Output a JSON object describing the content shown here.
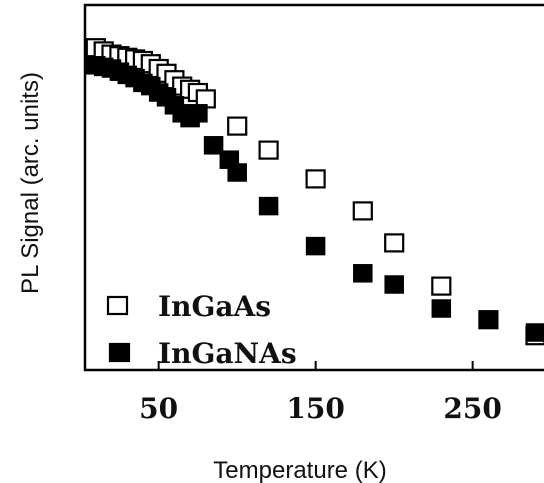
{
  "chart_data": {
    "type": "scatter",
    "xlabel": "Temperature (K)",
    "ylabel": "PL Signal (arc. units)",
    "xlim": [
      5,
      295
    ],
    "ylim": [
      0,
      1.0
    ],
    "xticks": [
      50,
      150,
      250
    ],
    "grid": false,
    "legend_position": "bottom-left",
    "series": [
      {
        "name": "InGaAs",
        "marker": "open-square",
        "color": "#000000",
        "x": [
          10,
          15,
          20,
          25,
          30,
          35,
          40,
          45,
          50,
          55,
          60,
          65,
          70,
          75,
          80,
          100,
          120,
          150,
          180,
          200,
          230,
          260,
          290
        ],
        "y": [
          0.99,
          0.98,
          0.97,
          0.965,
          0.96,
          0.955,
          0.95,
          0.94,
          0.925,
          0.91,
          0.89,
          0.87,
          0.86,
          0.85,
          0.83,
          0.745,
          0.67,
          0.58,
          0.48,
          0.38,
          0.245,
          0.14,
          0.09
        ]
      },
      {
        "name": "InGaNAs",
        "marker": "filled-square",
        "color": "#000000",
        "x": [
          10,
          15,
          20,
          25,
          30,
          35,
          40,
          45,
          50,
          55,
          60,
          65,
          70,
          75,
          85,
          95,
          100,
          120,
          150,
          180,
          200,
          230,
          260,
          290
        ],
        "y": [
          0.935,
          0.93,
          0.925,
          0.915,
          0.905,
          0.895,
          0.88,
          0.87,
          0.85,
          0.835,
          0.81,
          0.785,
          0.77,
          0.785,
          0.685,
          0.64,
          0.6,
          0.495,
          0.37,
          0.285,
          0.25,
          0.175,
          0.14,
          0.1
        ]
      }
    ]
  }
}
